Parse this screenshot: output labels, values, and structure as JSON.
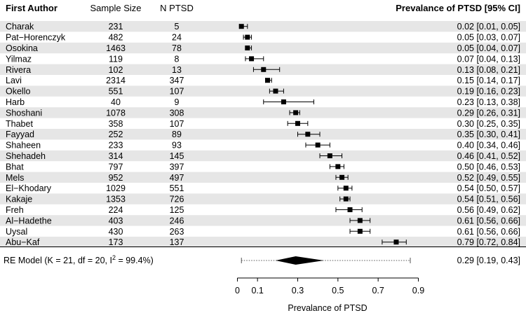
{
  "chart_data": {
    "type": "forest",
    "headers": {
      "author": "First Author",
      "sample": "Sample Size",
      "ptsd": "N PTSD",
      "estimate": "Prevalance of PTSD [95% CI]"
    },
    "studies": [
      {
        "author": "Charak",
        "n": "231",
        "n_ptsd": "5",
        "est": 0.02,
        "lo": 0.01,
        "hi": 0.05,
        "label": "0.02 [0.01, 0.05]"
      },
      {
        "author": "Pat−Horenczyk",
        "n": "482",
        "n_ptsd": "24",
        "est": 0.05,
        "lo": 0.03,
        "hi": 0.07,
        "label": "0.05 [0.03, 0.07]"
      },
      {
        "author": "Osokina",
        "n": "1463",
        "n_ptsd": "78",
        "est": 0.05,
        "lo": 0.04,
        "hi": 0.07,
        "label": "0.05 [0.04, 0.07]"
      },
      {
        "author": "Yilmaz",
        "n": "119",
        "n_ptsd": "8",
        "est": 0.07,
        "lo": 0.04,
        "hi": 0.13,
        "label": "0.07 [0.04, 0.13]"
      },
      {
        "author": "Rivera",
        "n": "102",
        "n_ptsd": "13",
        "est": 0.13,
        "lo": 0.08,
        "hi": 0.21,
        "label": "0.13 [0.08, 0.21]"
      },
      {
        "author": "Lavi",
        "n": "2314",
        "n_ptsd": "347",
        "est": 0.15,
        "lo": 0.14,
        "hi": 0.17,
        "label": "0.15 [0.14, 0.17]"
      },
      {
        "author": "Okello",
        "n": "551",
        "n_ptsd": "107",
        "est": 0.19,
        "lo": 0.16,
        "hi": 0.23,
        "label": "0.19 [0.16, 0.23]"
      },
      {
        "author": "Harb",
        "n": "40",
        "n_ptsd": "9",
        "est": 0.23,
        "lo": 0.13,
        "hi": 0.38,
        "label": "0.23 [0.13, 0.38]"
      },
      {
        "author": "Shoshani",
        "n": "1078",
        "n_ptsd": "308",
        "est": 0.29,
        "lo": 0.26,
        "hi": 0.31,
        "label": "0.29 [0.26, 0.31]"
      },
      {
        "author": "Thabet",
        "n": "358",
        "n_ptsd": "107",
        "est": 0.3,
        "lo": 0.25,
        "hi": 0.35,
        "label": "0.30 [0.25, 0.35]"
      },
      {
        "author": "Fayyad",
        "n": "252",
        "n_ptsd": "89",
        "est": 0.35,
        "lo": 0.3,
        "hi": 0.41,
        "label": "0.35 [0.30, 0.41]"
      },
      {
        "author": "Shaheen",
        "n": "233",
        "n_ptsd": "93",
        "est": 0.4,
        "lo": 0.34,
        "hi": 0.46,
        "label": "0.40 [0.34, 0.46]"
      },
      {
        "author": "Shehadeh",
        "n": "314",
        "n_ptsd": "145",
        "est": 0.46,
        "lo": 0.41,
        "hi": 0.52,
        "label": "0.46 [0.41, 0.52]"
      },
      {
        "author": "Bhat",
        "n": "797",
        "n_ptsd": "397",
        "est": 0.5,
        "lo": 0.46,
        "hi": 0.53,
        "label": "0.50 [0.46, 0.53]"
      },
      {
        "author": "Mels",
        "n": "952",
        "n_ptsd": "497",
        "est": 0.52,
        "lo": 0.49,
        "hi": 0.55,
        "label": "0.52 [0.49, 0.55]"
      },
      {
        "author": "El−Khodary",
        "n": "1029",
        "n_ptsd": "551",
        "est": 0.54,
        "lo": 0.5,
        "hi": 0.57,
        "label": "0.54 [0.50, 0.57]"
      },
      {
        "author": "Kakaje",
        "n": "1353",
        "n_ptsd": "726",
        "est": 0.54,
        "lo": 0.51,
        "hi": 0.56,
        "label": "0.54 [0.51, 0.56]"
      },
      {
        "author": "Freh",
        "n": "224",
        "n_ptsd": "125",
        "est": 0.56,
        "lo": 0.49,
        "hi": 0.62,
        "label": "0.56 [0.49, 0.62]"
      },
      {
        "author": "Al−Hadethe",
        "n": "403",
        "n_ptsd": "246",
        "est": 0.61,
        "lo": 0.56,
        "hi": 0.66,
        "label": "0.61 [0.56, 0.66]"
      },
      {
        "author": "Uysal",
        "n": "430",
        "n_ptsd": "263",
        "est": 0.61,
        "lo": 0.56,
        "hi": 0.66,
        "label": "0.61 [0.56, 0.66]"
      },
      {
        "author": "Abu−Kaf",
        "n": "173",
        "n_ptsd": "137",
        "est": 0.79,
        "lo": 0.72,
        "hi": 0.84,
        "label": "0.79 [0.72, 0.84]"
      }
    ],
    "summary": {
      "label_prefix": "RE Model (K = 21, df = 20, I",
      "label_sup": "2",
      "label_suffix": " = 99.4%)",
      "est": 0.29,
      "lo": 0.19,
      "hi": 0.43,
      "pi_lo": 0.02,
      "pi_hi": 0.86,
      "ci_label": "0.29 [0.19, 0.43]"
    },
    "x_axis": {
      "label": "Prevalance of PTSD",
      "ticks": [
        0,
        0.1,
        0.3,
        0.5,
        0.7,
        0.9
      ],
      "tick_labels": [
        "0",
        "0.1",
        "0.3",
        "0.5",
        "0.7",
        "0.9"
      ],
      "range": [
        0,
        0.9
      ]
    },
    "colors": {
      "stripe": "#e6e6e6",
      "mark": "#000000",
      "pi_line": "#555555"
    }
  }
}
